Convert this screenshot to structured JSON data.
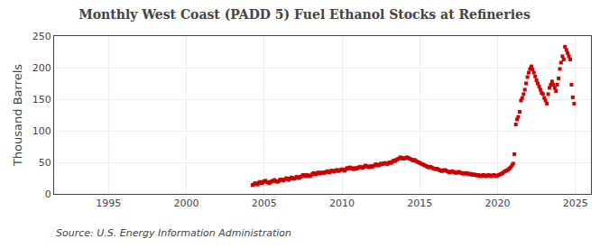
{
  "chart_data": {
    "type": "scatter",
    "title": "Monthly West Coast (PADD 5) Fuel Ethanol Stocks at Refineries",
    "y_label": "Thousand Barrels",
    "annotations": [
      "Source: U.S. Energy Information Administration"
    ],
    "color": "#cc0000",
    "marker": "square",
    "grid": true,
    "xlim": [
      1991.5,
      2026.0
    ],
    "ylim": [
      0,
      250
    ],
    "xticks": [
      1995,
      2000,
      2005,
      2010,
      2015,
      2020,
      2025
    ],
    "yticks": [
      0,
      50,
      100,
      150,
      200,
      250
    ],
    "x": [
      2004.25,
      2004.33,
      2004.42,
      2004.5,
      2004.58,
      2004.67,
      2004.75,
      2004.83,
      2004.92,
      2005.0,
      2005.08,
      2005.17,
      2005.25,
      2005.33,
      2005.42,
      2005.5,
      2005.58,
      2005.67,
      2005.75,
      2005.83,
      2005.92,
      2006.0,
      2006.08,
      2006.17,
      2006.25,
      2006.33,
      2006.42,
      2006.5,
      2006.58,
      2006.67,
      2006.75,
      2006.83,
      2006.92,
      2007.0,
      2007.08,
      2007.17,
      2007.25,
      2007.33,
      2007.42,
      2007.5,
      2007.58,
      2007.67,
      2007.75,
      2007.83,
      2007.92,
      2008.0,
      2008.08,
      2008.17,
      2008.25,
      2008.33,
      2008.42,
      2008.5,
      2008.58,
      2008.67,
      2008.75,
      2008.83,
      2008.92,
      2009.0,
      2009.08,
      2009.17,
      2009.25,
      2009.33,
      2009.42,
      2009.5,
      2009.58,
      2009.67,
      2009.75,
      2009.83,
      2009.92,
      2010.0,
      2010.08,
      2010.17,
      2010.25,
      2010.33,
      2010.42,
      2010.5,
      2010.58,
      2010.67,
      2010.75,
      2010.83,
      2010.92,
      2011.0,
      2011.08,
      2011.17,
      2011.25,
      2011.33,
      2011.42,
      2011.5,
      2011.58,
      2011.67,
      2011.75,
      2011.83,
      2011.92,
      2012.0,
      2012.08,
      2012.17,
      2012.25,
      2012.33,
      2012.42,
      2012.5,
      2012.58,
      2012.67,
      2012.75,
      2012.83,
      2012.92,
      2013.0,
      2013.08,
      2013.17,
      2013.25,
      2013.33,
      2013.42,
      2013.5,
      2013.58,
      2013.67,
      2013.75,
      2013.83,
      2013.92,
      2014.0,
      2014.08,
      2014.17,
      2014.25,
      2014.33,
      2014.42,
      2014.5,
      2014.58,
      2014.67,
      2014.75,
      2014.83,
      2014.92,
      2015.0,
      2015.08,
      2015.17,
      2015.25,
      2015.33,
      2015.42,
      2015.5,
      2015.58,
      2015.67,
      2015.75,
      2015.83,
      2015.92,
      2016.0,
      2016.08,
      2016.17,
      2016.25,
      2016.33,
      2016.42,
      2016.5,
      2016.58,
      2016.67,
      2016.75,
      2016.83,
      2016.92,
      2017.0,
      2017.08,
      2017.17,
      2017.25,
      2017.33,
      2017.42,
      2017.5,
      2017.58,
      2017.67,
      2017.75,
      2017.83,
      2017.92,
      2018.0,
      2018.08,
      2018.17,
      2018.25,
      2018.33,
      2018.42,
      2018.5,
      2018.58,
      2018.67,
      2018.75,
      2018.83,
      2018.92,
      2019.0,
      2019.08,
      2019.17,
      2019.25,
      2019.33,
      2019.42,
      2019.5,
      2019.58,
      2019.67,
      2019.75,
      2019.83,
      2019.92,
      2020.0,
      2020.08,
      2020.17,
      2020.25,
      2020.33,
      2020.42,
      2020.5,
      2020.58,
      2020.67,
      2020.75,
      2020.83,
      2020.92,
      2021.0,
      2021.08,
      2021.17,
      2021.25,
      2021.33,
      2021.42,
      2021.5,
      2021.58,
      2021.67,
      2021.75,
      2021.83,
      2021.92,
      2022.0,
      2022.08,
      2022.17,
      2022.25,
      2022.33,
      2022.42,
      2022.5,
      2022.58,
      2022.67,
      2022.75,
      2022.83,
      2022.92,
      2023.0,
      2023.08,
      2023.17,
      2023.25,
      2023.33,
      2023.42,
      2023.5,
      2023.58,
      2023.67,
      2023.75,
      2023.83,
      2023.92,
      2024.0,
      2024.08,
      2024.17,
      2024.25,
      2024.33,
      2024.42,
      2024.5,
      2024.58,
      2024.67,
      2024.75,
      2024.83,
      2024.92
    ],
    "values": [
      14,
      15,
      17,
      16,
      15,
      18,
      19,
      17,
      18,
      20,
      21,
      19,
      18,
      17,
      19,
      20,
      21,
      22,
      20,
      19,
      20,
      22,
      23,
      22,
      21,
      23,
      25,
      24,
      22,
      24,
      26,
      25,
      24,
      25,
      27,
      26,
      25,
      27,
      28,
      30,
      29,
      28,
      30,
      29,
      28,
      29,
      31,
      33,
      32,
      31,
      33,
      34,
      32,
      33,
      34,
      33,
      34,
      35,
      36,
      34,
      35,
      37,
      36,
      35,
      37,
      38,
      36,
      37,
      38,
      39,
      38,
      37,
      39,
      41,
      40,
      42,
      41,
      40,
      39,
      41,
      40,
      41,
      42,
      43,
      42,
      41,
      43,
      45,
      44,
      43,
      42,
      44,
      43,
      44,
      45,
      47,
      46,
      45,
      46,
      48,
      47,
      48,
      49,
      48,
      47,
      49,
      50,
      49,
      51,
      53,
      52,
      54,
      55,
      56,
      58,
      57,
      56,
      56,
      57,
      58,
      57,
      56,
      55,
      54,
      53,
      54,
      52,
      51,
      50,
      49,
      48,
      47,
      46,
      45,
      44,
      43,
      42,
      43,
      42,
      41,
      40,
      39,
      40,
      39,
      38,
      37,
      36,
      37,
      38,
      37,
      36,
      35,
      34,
      35,
      36,
      35,
      34,
      33,
      34,
      35,
      34,
      33,
      32,
      33,
      32,
      33,
      32,
      31,
      32,
      31,
      30,
      31,
      30,
      29,
      30,
      29,
      28,
      29,
      30,
      29,
      28,
      29,
      30,
      29,
      28,
      29,
      30,
      29,
      28,
      29,
      30,
      31,
      32,
      33,
      35,
      36,
      37,
      38,
      40,
      42,
      45,
      48,
      63,
      110,
      118,
      122,
      130,
      148,
      152,
      158,
      165,
      175,
      185,
      192,
      198,
      202,
      197,
      192,
      186,
      180,
      175,
      170,
      165,
      160,
      158,
      152,
      148,
      143,
      158,
      168,
      173,
      178,
      173,
      168,
      163,
      173,
      183,
      198,
      208,
      218,
      213,
      233,
      228,
      223,
      218,
      213,
      173,
      153,
      143
    ]
  }
}
